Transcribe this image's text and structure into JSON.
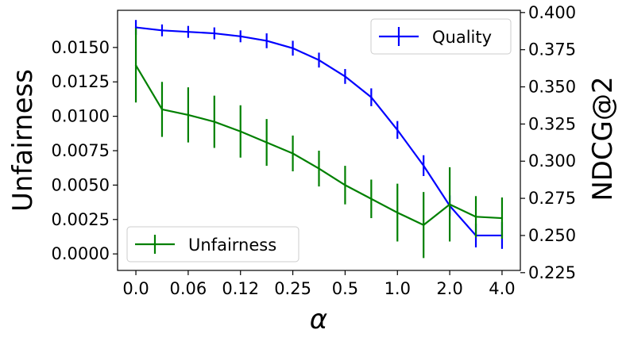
{
  "chart_data": {
    "type": "line",
    "x_tick_labels": [
      "0.0",
      "0.06",
      "0.12",
      "0.25",
      "0.5",
      "1.0",
      "2.0",
      "4.0"
    ],
    "xlabel": "α",
    "ylabel_left": "Unfairness",
    "ylabel_right": "NDCG@2",
    "ylim_left": [
      -0.0012,
      0.0177
    ],
    "ylim_right": [
      0.2265,
      0.4015
    ],
    "left_ticks": [
      "0.0000",
      "0.0025",
      "0.0050",
      "0.0075",
      "0.0100",
      "0.0125",
      "0.0150"
    ],
    "left_tick_values": [
      0.0,
      0.0025,
      0.005,
      0.0075,
      0.01,
      0.0125,
      0.015
    ],
    "right_ticks": [
      "0.225",
      "0.250",
      "0.275",
      "0.300",
      "0.325",
      "0.350",
      "0.375",
      "0.400"
    ],
    "right_tick_values": [
      0.225,
      0.25,
      0.275,
      0.3,
      0.325,
      0.35,
      0.375,
      0.4
    ],
    "x_tick_positions": [
      0,
      2,
      4,
      6,
      8,
      10,
      12,
      14
    ],
    "xlim": [
      -0.7,
      14.7
    ],
    "grid": false,
    "series": [
      {
        "name": "Quality",
        "axis": "right",
        "color": "#0000ff",
        "x": [
          0,
          1,
          2,
          3,
          4,
          5,
          6,
          7,
          8,
          9,
          10,
          11,
          12,
          13,
          14
        ],
        "values": [
          0.39,
          0.388,
          0.387,
          0.386,
          0.384,
          0.381,
          0.376,
          0.368,
          0.357,
          0.343,
          0.321,
          0.297,
          0.27,
          0.25,
          0.25
        ],
        "error": [
          0.005,
          0.004,
          0.004,
          0.004,
          0.004,
          0.005,
          0.005,
          0.005,
          0.005,
          0.006,
          0.006,
          0.007,
          0.007,
          0.008,
          0.009
        ]
      },
      {
        "name": "Unfairness",
        "axis": "left",
        "color": "#008000",
        "x": [
          0,
          1,
          2,
          3,
          4,
          5,
          6,
          7,
          8,
          9,
          10,
          11,
          12,
          13,
          14
        ],
        "values": [
          0.0137,
          0.0105,
          0.0101,
          0.0096,
          0.0089,
          0.0081,
          0.0073,
          0.0062,
          0.005,
          0.004,
          0.003,
          0.0021,
          0.0036,
          0.0027,
          0.0026
        ],
        "error": [
          0.0027,
          0.002,
          0.002,
          0.0019,
          0.0019,
          0.0017,
          0.0013,
          0.0013,
          0.0014,
          0.0014,
          0.0021,
          0.0024,
          0.0027,
          0.0015,
          0.0015
        ]
      }
    ],
    "legend_quality_placement": "top-right",
    "legend_unfairness_placement": "bottom-left"
  }
}
